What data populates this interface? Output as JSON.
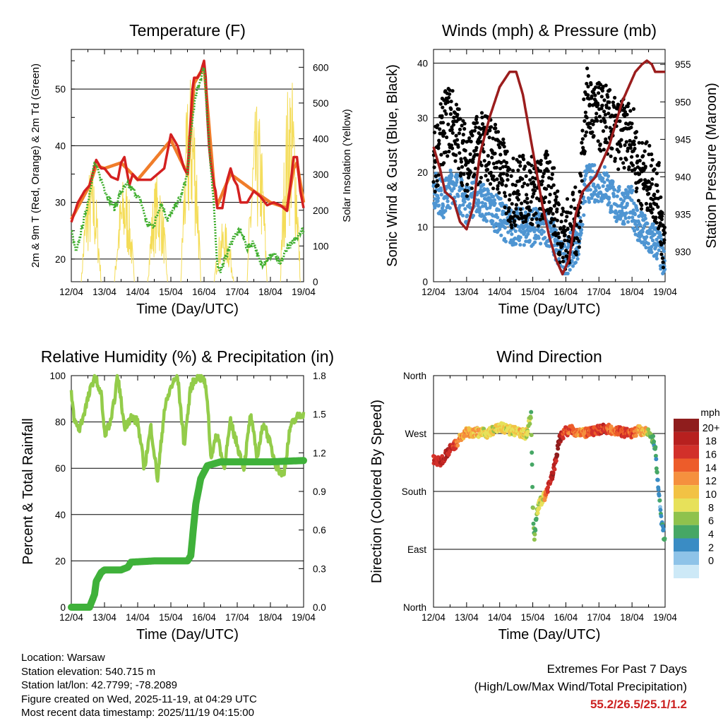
{
  "colors": {
    "temp2m": "#d42020",
    "temp9m": "#f07d2a",
    "dewpoint": "#3fae2e",
    "insolation": "#f4dc57",
    "gust": "#000000",
    "wind": "#4e95d2",
    "pressure": "#9b1d1d",
    "rh": "#93cc4a",
    "precip": "#3fb13a",
    "grid": "#000000"
  },
  "info": {
    "location": "Location: Warsaw",
    "elevation": "Station elevation: 540.715 m",
    "latlon": "Station lat/lon: 42.7799; -78.2089",
    "created": "Figure created on Wed, 2025-11-19, at 04:29 UTC",
    "recent": "Most recent data timestamp: 2025/11/19 04:15:00"
  },
  "extremes": {
    "line1": "Extremes For Past 7 Days",
    "line2": "(High/Low/Max Wind/Total Precipitation)",
    "values": "55.2/26.5/25.1/1.2"
  },
  "chart_data": [
    {
      "type": "line",
      "title": "Temperature (F)",
      "xlabel": "Time (Day/UTC)",
      "ylabel": "2m & 9m T (Red, Orange) & 2m Td (Green)",
      "ylabel_right": "Solar Insolation (Yellow)",
      "x_ticks": [
        "12/04",
        "13/04",
        "14/04",
        "15/04",
        "16/04",
        "17/04",
        "18/04",
        "19/04"
      ],
      "x_range": [
        0,
        7
      ],
      "ylim": [
        16,
        57
      ],
      "y_ticks": [
        20,
        30,
        40,
        50
      ],
      "ylim_right": [
        0,
        650
      ],
      "y_ticks_right": [
        0,
        100,
        200,
        300,
        400,
        500,
        600
      ],
      "series": [
        {
          "name": "2m T",
          "x": [
            0,
            0.2,
            0.4,
            0.55,
            0.75,
            0.9,
            1.0,
            1.2,
            1.4,
            1.5,
            1.6,
            1.75,
            1.85,
            2.0,
            2.2,
            2.4,
            2.6,
            2.8,
            3.0,
            3.2,
            3.4,
            3.5,
            3.55,
            3.65,
            3.7,
            3.8,
            3.9,
            4.0,
            4.05,
            4.1,
            4.15,
            4.2,
            4.3,
            4.35,
            4.4,
            4.55,
            4.7,
            4.8,
            4.9,
            5.0,
            5.1,
            5.3,
            5.5,
            5.7,
            5.9,
            6.1,
            6.3,
            6.4,
            6.5,
            6.6,
            6.7,
            6.8,
            6.9,
            7.0
          ],
          "values": [
            26.5,
            30,
            32,
            33,
            37.5,
            36,
            36,
            34.5,
            34,
            37,
            38,
            33,
            35,
            34,
            34,
            34,
            35,
            36,
            42,
            40,
            36,
            35,
            40,
            50,
            52,
            52,
            53,
            55,
            52,
            45,
            40,
            37,
            33,
            32,
            29,
            29,
            34,
            36,
            34,
            33,
            30,
            30,
            32,
            31,
            29.5,
            30,
            29.5,
            29,
            28.5,
            33,
            38,
            38,
            32,
            29
          ]
        },
        {
          "name": "9m T",
          "x": [
            0,
            0.55,
            0.75,
            1.0,
            1.5,
            2.0,
            3.0,
            3.5,
            3.7,
            4.0,
            4.3,
            4.4,
            4.8,
            5.5,
            6.0,
            6.5,
            6.7,
            6.8,
            7.0
          ],
          "values": [
            27,
            33,
            36.5,
            36,
            37,
            34,
            41,
            35,
            51,
            54,
            33,
            29.5,
            35,
            32,
            30,
            29,
            36,
            37,
            30
          ]
        },
        {
          "name": "2m Td",
          "x": [
            0,
            0.15,
            0.3,
            0.5,
            0.7,
            0.9,
            1.1,
            1.3,
            1.5,
            1.7,
            1.9,
            2.1,
            2.3,
            2.5,
            2.7,
            2.9,
            3.1,
            3.3,
            3.5,
            3.6,
            3.7,
            3.8,
            3.9,
            4.0,
            4.1,
            4.2,
            4.3,
            4.4,
            4.5,
            4.7,
            4.9,
            5.1,
            5.3,
            5.5,
            5.7,
            5.9,
            6.1,
            6.3,
            6.5,
            6.7,
            6.9,
            7.0
          ],
          "values": [
            25,
            21,
            25,
            30,
            37,
            34,
            31,
            29,
            32,
            33,
            32,
            30,
            26,
            26,
            30,
            27,
            29,
            31,
            35,
            42,
            47,
            50,
            52,
            54,
            45,
            36,
            29,
            19,
            18,
            21,
            24,
            25,
            22,
            23,
            19,
            20,
            21,
            19,
            22,
            23,
            25,
            25
          ]
        },
        {
          "name": "Solar Insolation",
          "axis": "right",
          "days": [
            0.6,
            1.6,
            2.6,
            3.6,
            4.6,
            5.6,
            6.6
          ],
          "peaks": [
            330,
            300,
            310,
            590,
            170,
            500,
            600
          ]
        }
      ]
    },
    {
      "type": "scatter",
      "title": "Winds (mph) & Pressure (mb)",
      "xlabel": "Time (Day/UTC)",
      "ylabel": "Sonic Wind & Gust (Blue, Black)",
      "ylabel_right": "Station Pressure (Maroon)",
      "x_ticks": [
        "12/04",
        "13/04",
        "14/04",
        "15/04",
        "16/04",
        "17/04",
        "18/04",
        "19/04"
      ],
      "x_range": [
        0,
        7
      ],
      "ylim": [
        0,
        42.5
      ],
      "y_ticks": [
        0,
        10,
        20,
        30,
        40
      ],
      "ylim_right": [
        926,
        957
      ],
      "y_ticks_right": [
        930,
        935,
        940,
        945,
        950,
        955
      ],
      "series": [
        {
          "name": "Gust",
          "x": [
            0,
            0.3,
            0.5,
            0.7,
            1.0,
            1.3,
            1.6,
            2.0,
            2.3,
            2.6,
            2.9,
            3.2,
            3.5,
            3.9,
            4.2,
            4.4,
            4.6,
            4.9,
            5.2,
            5.5,
            5.8,
            6.0,
            6.2,
            6.5,
            6.8,
            7.0
          ],
          "values": [
            21,
            28,
            30,
            27,
            22,
            24,
            25,
            22,
            16,
            17,
            17,
            16,
            18,
            8,
            10,
            12,
            33,
            30,
            30,
            27,
            27,
            27,
            20,
            19,
            16,
            5
          ]
        },
        {
          "name": "Wind",
          "x": [
            0,
            0.3,
            0.6,
            1.0,
            1.3,
            1.6,
            2.0,
            2.3,
            2.6,
            2.9,
            3.2,
            3.5,
            3.9,
            4.2,
            4.4,
            4.6,
            4.9,
            5.2,
            5.5,
            5.8,
            6.0,
            6.2,
            6.5,
            6.8,
            7.0
          ],
          "values": [
            17,
            15,
            18,
            14,
            16,
            14,
            12,
            10,
            10,
            10,
            10,
            10,
            3.5,
            6,
            8,
            18,
            18,
            18,
            14,
            14,
            14,
            10,
            8,
            7,
            2
          ]
        },
        {
          "name": "Pressure",
          "axis": "right",
          "x": [
            0,
            0.2,
            0.35,
            0.6,
            0.8,
            1.0,
            1.2,
            1.4,
            1.7,
            2.0,
            2.3,
            2.5,
            2.7,
            2.9,
            3.1,
            3.3,
            3.5,
            3.7,
            3.9,
            4.0,
            4.1,
            4.2,
            4.3,
            4.5,
            4.7,
            4.9,
            5.1,
            5.3,
            5.5,
            5.7,
            5.9,
            6.1,
            6.3,
            6.45,
            6.6,
            6.7,
            6.8,
            7.0
          ],
          "values": [
            944,
            941,
            938,
            937,
            934,
            933,
            936,
            943,
            948,
            952,
            954,
            954,
            951,
            946,
            941,
            936,
            932,
            929,
            927,
            928,
            929,
            932,
            935,
            938,
            939,
            940,
            942,
            944,
            947,
            950,
            952,
            954,
            955,
            955.5,
            955,
            954,
            954,
            954
          ]
        }
      ]
    },
    {
      "type": "line",
      "title": "Relative Humidity (%) & Precipitation (in)",
      "xlabel": "Time (Day/UTC)",
      "ylabel": "Percent & Total Rainfall",
      "x_ticks": [
        "12/04",
        "13/04",
        "14/04",
        "15/04",
        "16/04",
        "17/04",
        "18/04",
        "19/04"
      ],
      "x_range": [
        0,
        7
      ],
      "ylim": [
        0,
        100
      ],
      "y_ticks": [
        0,
        20,
        40,
        60,
        80,
        100
      ],
      "ylim_right": [
        0,
        1.8
      ],
      "y_ticks_right": [
        "0.0",
        "0.3",
        "0.6",
        "0.9",
        "1.2",
        "1.5",
        "1.8"
      ],
      "series": [
        {
          "name": "Relative Humidity",
          "x": [
            0,
            0.1,
            0.25,
            0.5,
            0.7,
            0.9,
            1.0,
            1.2,
            1.4,
            1.6,
            1.8,
            2.0,
            2.2,
            2.4,
            2.6,
            2.8,
            3.0,
            3.2,
            3.4,
            3.6,
            3.8,
            4.0,
            4.1,
            4.2,
            4.4,
            4.6,
            4.8,
            5.0,
            5.2,
            5.4,
            5.6,
            5.8,
            6.0,
            6.2,
            6.4,
            6.6,
            6.8,
            7.0
          ],
          "values": [
            92,
            80,
            77,
            90,
            100,
            92,
            75,
            80,
            100,
            78,
            82,
            80,
            60,
            78,
            55,
            85,
            95,
            100,
            70,
            95,
            100,
            98,
            90,
            65,
            75,
            60,
            80,
            70,
            60,
            83,
            65,
            80,
            70,
            60,
            57,
            78,
            82,
            84
          ]
        },
        {
          "name": "Total Precipitation",
          "axis": "right",
          "x": [
            0,
            0.55,
            0.7,
            0.75,
            0.9,
            1.0,
            1.5,
            1.7,
            1.8,
            2.5,
            3.5,
            3.6,
            3.75,
            3.9,
            4.1,
            4.5,
            5.0,
            6.0,
            7.0
          ],
          "values": [
            0,
            0,
            0.1,
            0.2,
            0.27,
            0.29,
            0.29,
            0.31,
            0.35,
            0.36,
            0.36,
            0.4,
            0.8,
            1.0,
            1.1,
            1.13,
            1.13,
            1.13,
            1.14
          ]
        }
      ]
    },
    {
      "type": "scatter",
      "title": "Wind Direction",
      "xlabel": "Time (Day/UTC)",
      "ylabel": "Direction (Colored By Speed)",
      "x_ticks": [
        "12/04",
        "13/04",
        "14/04",
        "15/04",
        "16/04",
        "17/04",
        "18/04",
        "19/04"
      ],
      "x_range": [
        0,
        7
      ],
      "ylim": [
        0,
        360
      ],
      "y_ticks": [
        "North",
        "East",
        "South",
        "West",
        "North"
      ],
      "colorbar_title": "mph",
      "colorbar_labels": [
        "20+",
        "18",
        "16",
        "14",
        "12",
        "10",
        "8",
        "6",
        "4",
        "2",
        "0"
      ],
      "colorbar_colors": [
        "#8f1d1d",
        "#b7201f",
        "#d2302a",
        "#ed5c2a",
        "#f5903e",
        "#f2c244",
        "#e7e15a",
        "#8fc24d",
        "#46a765",
        "#3a8cc4",
        "#8ec3e8",
        "#cde9f7"
      ],
      "series": [
        {
          "name": "Direction",
          "x": [
            0,
            0.2,
            0.4,
            0.6,
            0.8,
            1.0,
            1.3,
            1.6,
            2.0,
            2.3,
            2.6,
            2.8,
            2.95,
            3.0,
            3.05,
            3.1,
            3.2,
            3.3,
            3.4,
            3.5,
            3.6,
            3.7,
            3.8,
            4.0,
            4.2,
            4.5,
            4.8,
            5.1,
            5.4,
            5.7,
            6.0,
            6.2,
            6.4,
            6.5,
            6.6,
            6.7,
            6.8,
            6.9,
            7.0
          ],
          "values": [
            230,
            225,
            240,
            250,
            262,
            272,
            272,
            270,
            280,
            275,
            272,
            268,
            300,
            160,
            100,
            140,
            160,
            170,
            175,
            195,
            205,
            230,
            262,
            274,
            275,
            270,
            272,
            278,
            276,
            272,
            270,
            275,
            272,
            270,
            265,
            250,
            180,
            130,
            100
          ],
          "speeds": [
            16,
            17,
            18,
            16,
            12,
            12,
            10,
            8,
            9,
            8,
            10,
            8,
            5,
            5,
            6,
            6,
            7,
            8,
            14,
            17,
            18,
            18,
            20,
            14,
            14,
            12,
            15,
            16,
            13,
            16,
            14,
            12,
            10,
            8,
            4,
            3,
            3,
            2,
            4
          ]
        }
      ]
    }
  ]
}
